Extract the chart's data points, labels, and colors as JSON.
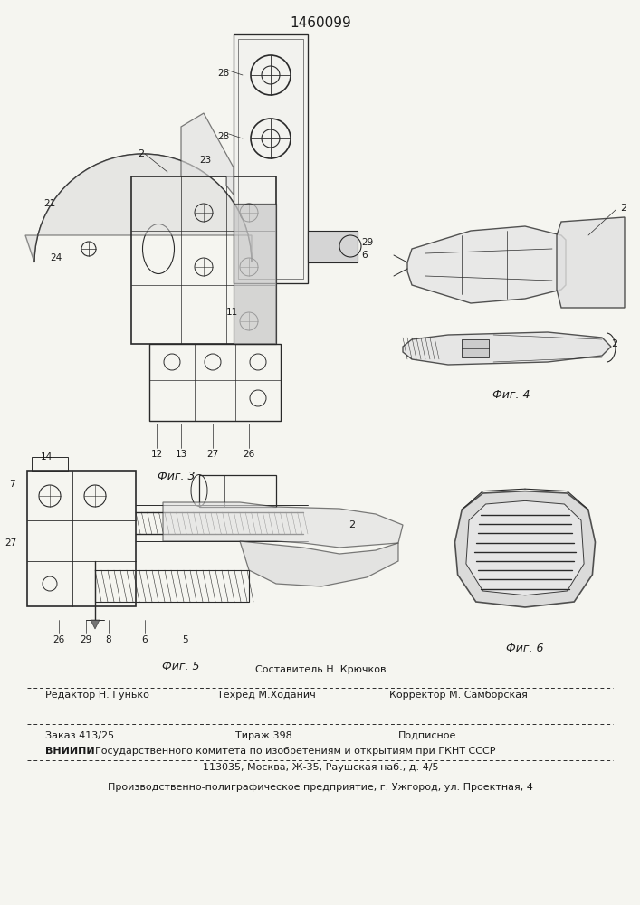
{
  "title": "1460099",
  "bg_color": "#f5f5f0",
  "text_color": "#1a1a1a",
  "lc": "#2a2a2a",
  "lw": 0.9,
  "fig3_label": "Фиг. 3",
  "fig4_label": "Фиг. 4",
  "fig5_label": "Фиг. 5",
  "fig6_label": "Фиг. 6",
  "footer": {
    "sostavitel": "Составитель Н. Крючков",
    "redaktor": "Редактор Н. Гунько",
    "tekhred": "Техред М.Ходанич",
    "korrektor": "Корректор М. Самборская",
    "zakaz": "Заказ 413/25",
    "tirazh": "Тираж 398",
    "podpisnoe": "Подписное",
    "vnipi1": "ВНИИПИ Государственного комитета по изобретениям и открытиям при ГКНТ СССР",
    "vnipi2": "113035, Москва, Ж-35, Раушская наб., д. 4/5",
    "polograf": "Производственно-полиграфическое предприятие, г. Ужгород, ул. Проектная, 4"
  }
}
